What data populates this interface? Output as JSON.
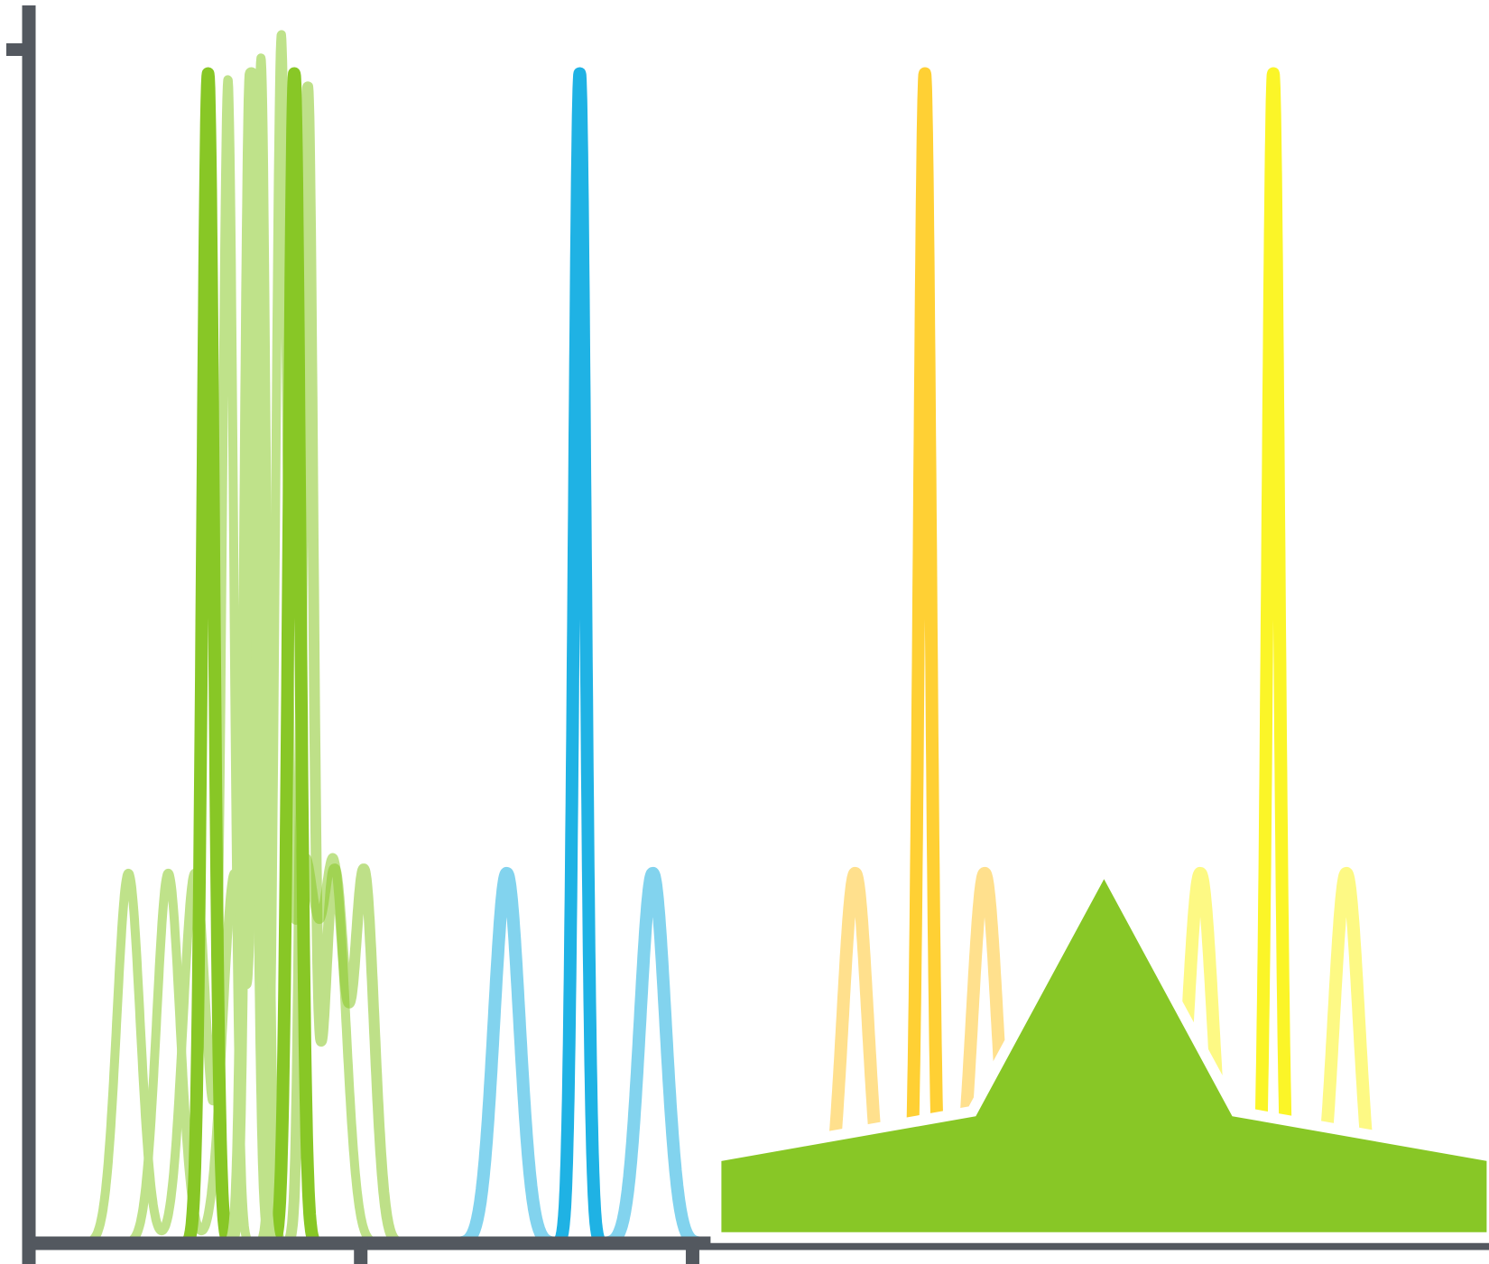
{
  "chart_data": {
    "type": "line",
    "title": "",
    "xlabel": "",
    "ylabel": "",
    "xlim": [
      0,
      44
    ],
    "ylim": [
      0,
      1.0
    ],
    "x_ticks": [
      0,
      10,
      20
    ],
    "y_ticks": [
      1.0
    ],
    "grid": false,
    "legend": "none",
    "axis_color": "#53585f",
    "series": [
      {
        "color": "#bfe28a",
        "opacity": 1.0,
        "stroke": 10,
        "peaks": [
          [
            3.0,
            0.31,
            0.35
          ],
          [
            5.0,
            0.31,
            0.35
          ],
          [
            6.0,
            0.97,
            0.17
          ]
        ]
      },
      {
        "color": "#bfe28a",
        "opacity": 1.0,
        "stroke": 10,
        "peaks": [
          [
            4.2,
            0.31,
            0.35
          ],
          [
            6.2,
            0.31,
            0.35
          ],
          [
            7.0,
            0.97,
            0.17
          ]
        ]
      },
      {
        "color": "#bfe28a",
        "opacity": 1.0,
        "stroke": 10,
        "peaks": [
          [
            8.3,
            0.31,
            0.35
          ],
          [
            9.2,
            0.31,
            0.35
          ],
          [
            7.6,
            0.97,
            0.17
          ]
        ]
      },
      {
        "color": "#88c726",
        "opacity": 0.55,
        "stroke": 12,
        "peaks": [
          [
            9.2,
            0.31,
            0.3
          ],
          [
            10.1,
            0.31,
            0.3
          ],
          [
            8.4,
            0.96,
            0.16
          ]
        ]
      },
      {
        "color": "#88c726",
        "opacity": 1.0,
        "stroke": 14,
        "peaks": [
          [
            5.4,
            0.98,
            0.17
          ],
          [
            8.0,
            0.98,
            0.17
          ]
        ]
      },
      {
        "color": "#bfe28a",
        "opacity": 1.0,
        "stroke": 14,
        "peaks": [
          [
            6.7,
            0.98,
            0.17
          ]
        ]
      },
      {
        "color": "#82d3ee",
        "opacity": 1.0,
        "stroke": 14,
        "peaks": [
          [
            14.4,
            0.31,
            0.38
          ],
          [
            18.8,
            0.31,
            0.38
          ]
        ]
      },
      {
        "color": "#1fb2e4",
        "opacity": 1.0,
        "stroke": 14,
        "peaks": [
          [
            16.6,
            0.98,
            0.17
          ]
        ]
      },
      {
        "color": "#ffe08d",
        "opacity": 1.0,
        "stroke": 14,
        "peaks": [
          [
            24.9,
            0.31,
            0.38
          ],
          [
            28.8,
            0.31,
            0.38
          ]
        ]
      },
      {
        "color": "#ffd034",
        "opacity": 1.0,
        "stroke": 14,
        "peaks": [
          [
            27.0,
            0.98,
            0.17
          ]
        ]
      },
      {
        "color": "#fdf984",
        "opacity": 1.0,
        "stroke": 14,
        "peaks": [
          [
            35.3,
            0.31,
            0.38
          ],
          [
            39.7,
            0.31,
            0.38
          ]
        ]
      },
      {
        "color": "#fbf528",
        "opacity": 1.0,
        "stroke": 14,
        "peaks": [
          [
            37.5,
            0.98,
            0.17
          ]
        ]
      }
    ],
    "marker": {
      "shape": "star",
      "color": "#88c726",
      "x": 32.4,
      "y": 0.05
    }
  }
}
